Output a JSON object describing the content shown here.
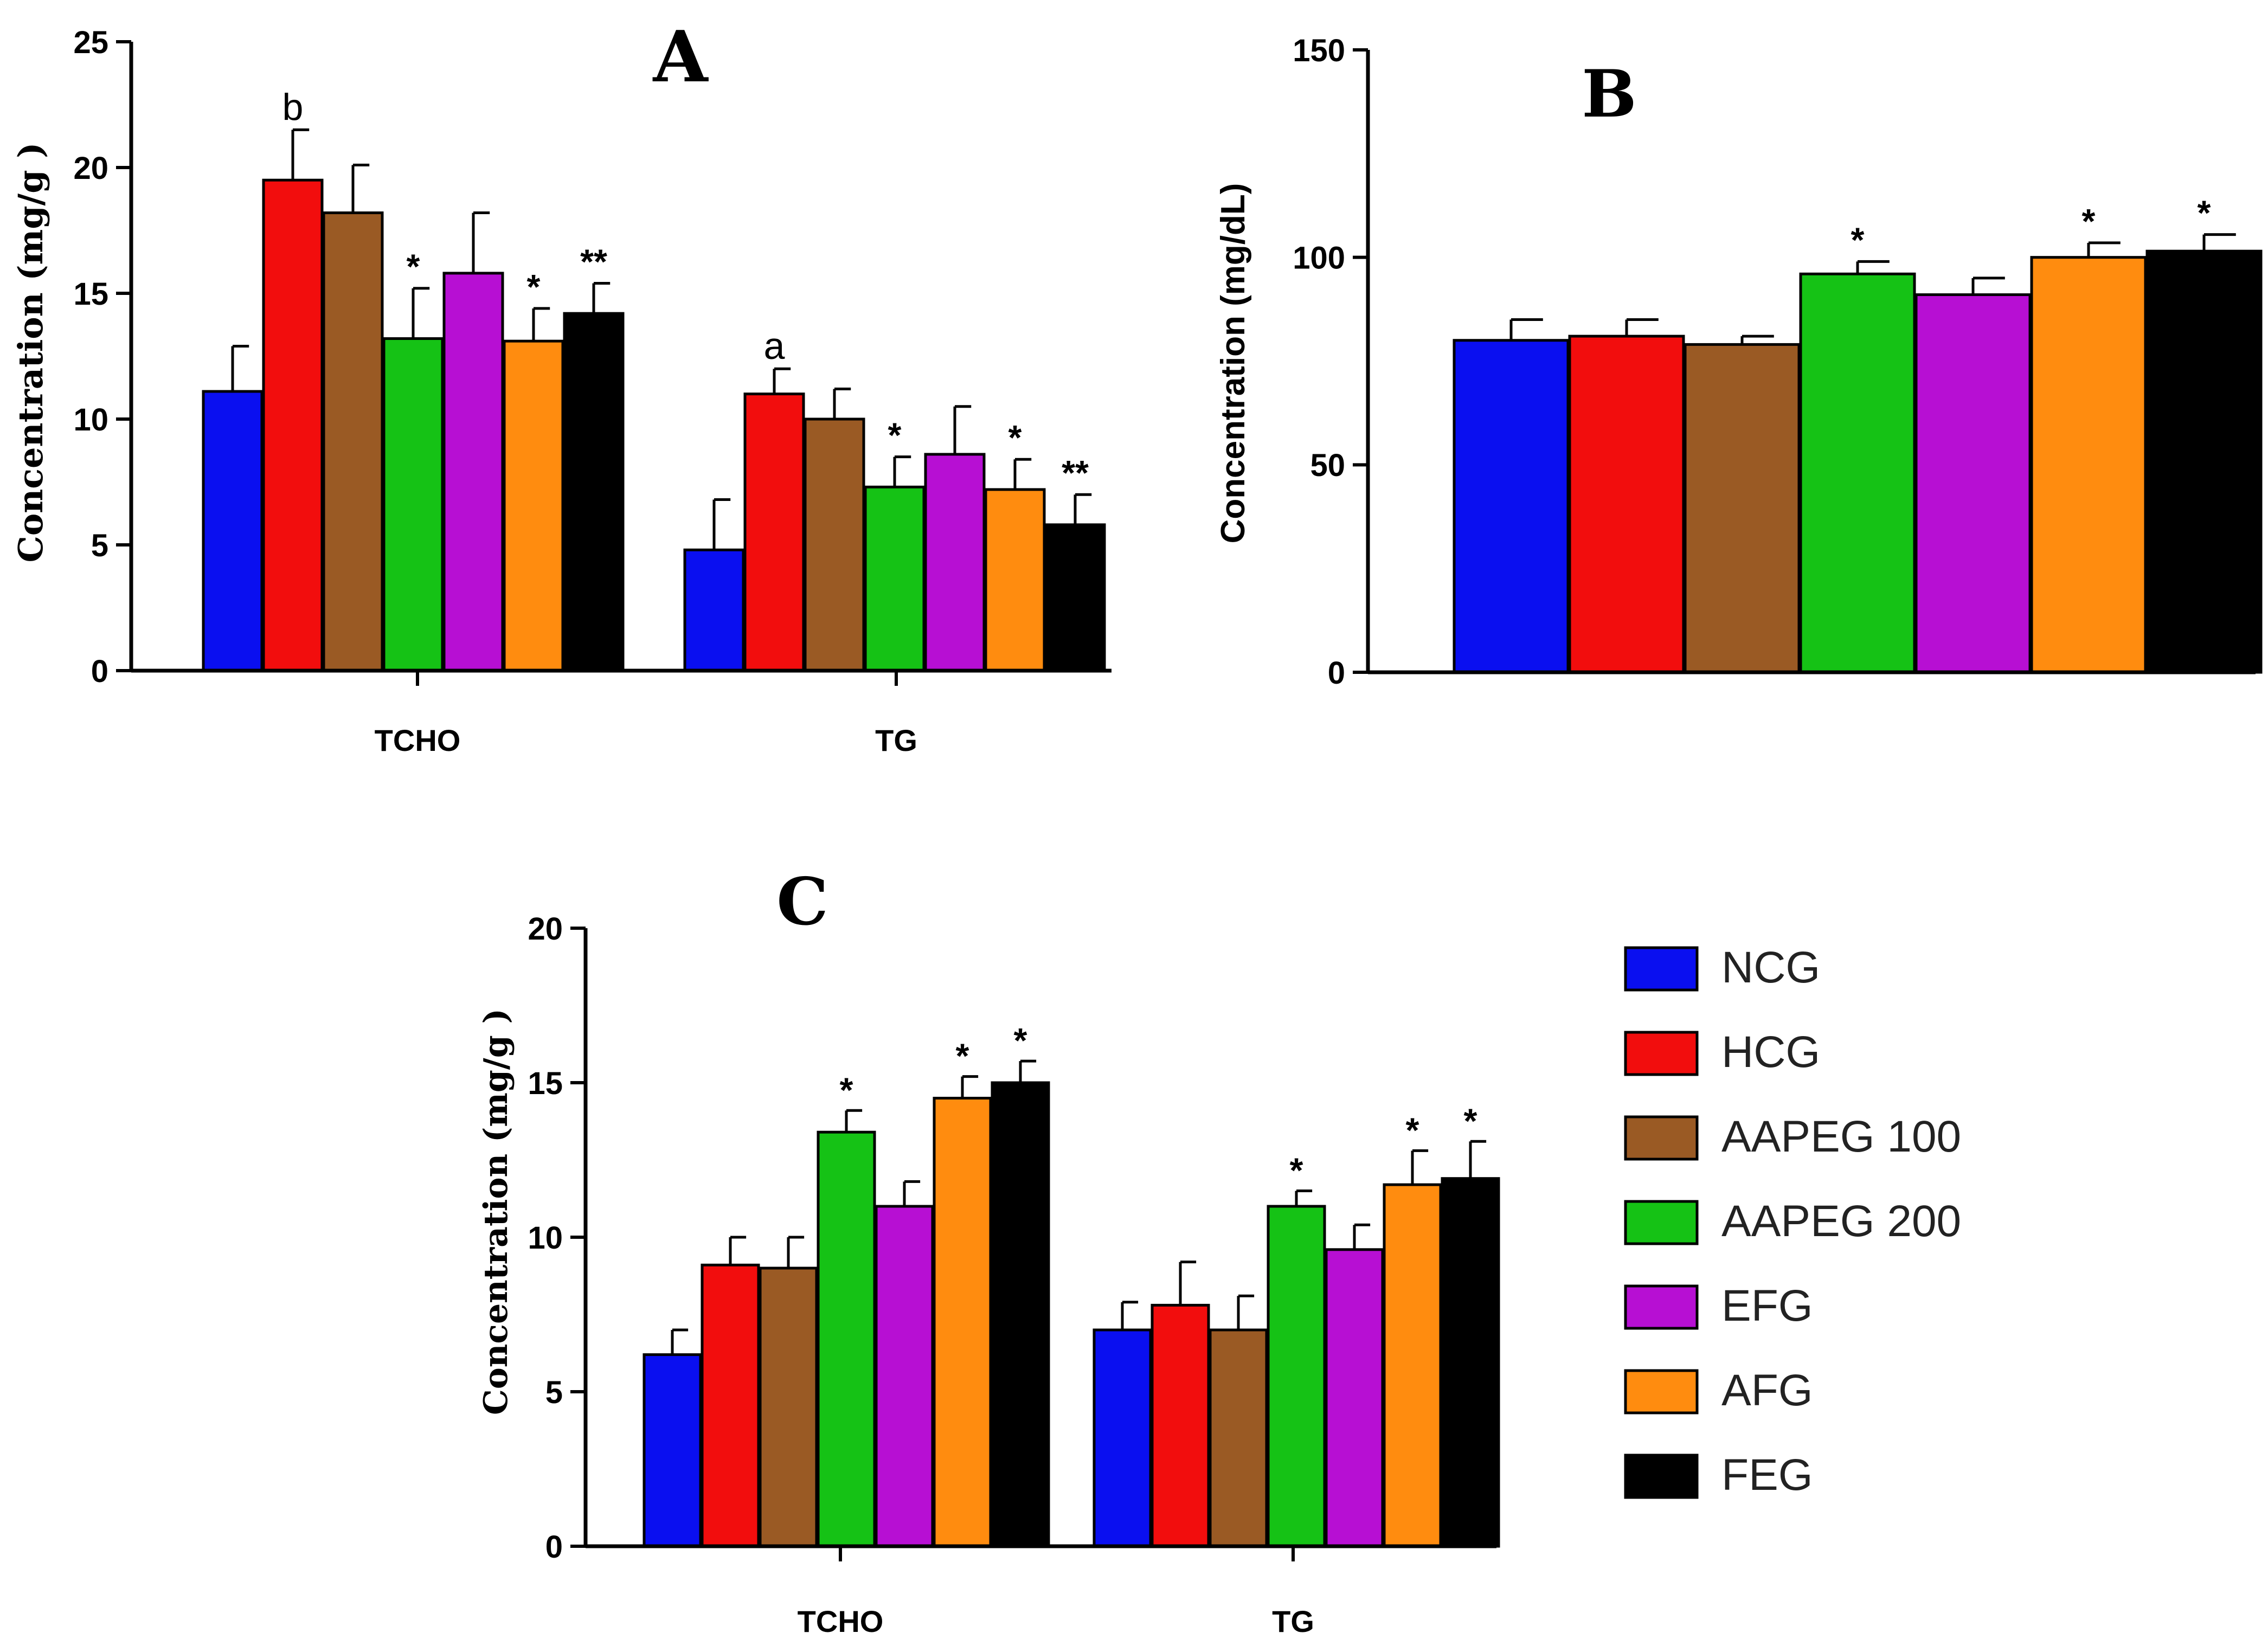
{
  "groups": [
    {
      "name": "NCG",
      "color": "#0a0ff0"
    },
    {
      "name": "HCG",
      "color": "#f20d0d"
    },
    {
      "name": "AAPEG 100",
      "color": "#9a5a24"
    },
    {
      "name": "AAPEG 200",
      "color": "#15c215"
    },
    {
      "name": "EFG",
      "color": "#b70fd3"
    },
    {
      "name": "AFG",
      "color": "#ff8c0f"
    },
    {
      "name": "FEG",
      "color": "#000000"
    }
  ],
  "chart_data": [
    {
      "id": "A",
      "type": "bar",
      "title": "A",
      "ylabel": "Concentration (mg/g )",
      "xlabel": "",
      "ylim": [
        0,
        25
      ],
      "yticks": [
        "0",
        "5",
        "10",
        "15",
        "20",
        "25"
      ],
      "categories": [
        "TCHO",
        "TG"
      ],
      "series": [
        {
          "name": "NCG",
          "values": [
            11.1,
            4.8
          ],
          "errors": [
            1.8,
            2.0
          ],
          "marks": [
            "",
            ""
          ]
        },
        {
          "name": "HCG",
          "values": [
            19.5,
            11.0
          ],
          "errors": [
            2.0,
            1.0
          ],
          "marks": [
            "b",
            "a"
          ]
        },
        {
          "name": "AAPEG 100",
          "values": [
            18.2,
            10.0
          ],
          "errors": [
            1.9,
            1.2
          ],
          "marks": [
            "",
            ""
          ]
        },
        {
          "name": "AAPEG 200",
          "values": [
            13.2,
            7.3
          ],
          "errors": [
            2.0,
            1.2
          ],
          "marks": [
            "*",
            "*"
          ]
        },
        {
          "name": "EFG",
          "values": [
            15.8,
            8.6
          ],
          "errors": [
            2.4,
            1.9
          ],
          "marks": [
            "",
            ""
          ]
        },
        {
          "name": "AFG",
          "values": [
            13.1,
            7.2
          ],
          "errors": [
            1.3,
            1.2
          ],
          "marks": [
            "*",
            "*"
          ]
        },
        {
          "name": "FEG",
          "values": [
            14.2,
            5.8
          ],
          "errors": [
            1.2,
            1.2
          ],
          "marks": [
            "**",
            "**"
          ]
        }
      ]
    },
    {
      "id": "B",
      "type": "bar",
      "title": "B",
      "ylabel": "Concentration (mg/dL)",
      "xlabel": "",
      "ylim": [
        0,
        150
      ],
      "yticks": [
        "0",
        "50",
        "100",
        "150"
      ],
      "categories": [
        ""
      ],
      "series": [
        {
          "name": "NCG",
          "values": [
            80
          ],
          "errors": [
            5
          ],
          "marks": [
            ""
          ]
        },
        {
          "name": "HCG",
          "values": [
            81
          ],
          "errors": [
            4
          ],
          "marks": [
            ""
          ]
        },
        {
          "name": "AAPEG 100",
          "values": [
            79
          ],
          "errors": [
            2
          ],
          "marks": [
            ""
          ]
        },
        {
          "name": "AAPEG 200",
          "values": [
            96
          ],
          "errors": [
            3
          ],
          "marks": [
            "*"
          ]
        },
        {
          "name": "EFG",
          "values": [
            91
          ],
          "errors": [
            4
          ],
          "marks": [
            ""
          ]
        },
        {
          "name": "AFG",
          "values": [
            100
          ],
          "errors": [
            3.5
          ],
          "marks": [
            "*"
          ]
        },
        {
          "name": "FEG",
          "values": [
            101.5
          ],
          "errors": [
            4
          ],
          "marks": [
            "*"
          ]
        }
      ]
    },
    {
      "id": "C",
      "type": "bar",
      "title": "C",
      "ylabel": "Concentration (mg/g )",
      "xlabel": "",
      "ylim": [
        0,
        20
      ],
      "yticks": [
        "0",
        "5",
        "10",
        "15",
        "20"
      ],
      "categories": [
        "TCHO",
        "TG"
      ],
      "series": [
        {
          "name": "NCG",
          "values": [
            6.2,
            7.0
          ],
          "errors": [
            0.8,
            0.9
          ],
          "marks": [
            "",
            ""
          ]
        },
        {
          "name": "HCG",
          "values": [
            9.1,
            7.8
          ],
          "errors": [
            0.9,
            1.4
          ],
          "marks": [
            "",
            ""
          ]
        },
        {
          "name": "AAPEG 100",
          "values": [
            9.0,
            7.0
          ],
          "errors": [
            1.0,
            1.1
          ],
          "marks": [
            "",
            ""
          ]
        },
        {
          "name": "AAPEG 200",
          "values": [
            13.4,
            11.0
          ],
          "errors": [
            0.7,
            0.5
          ],
          "marks": [
            "*",
            "*"
          ]
        },
        {
          "name": "EFG",
          "values": [
            11.0,
            9.6
          ],
          "errors": [
            0.8,
            0.8
          ],
          "marks": [
            "",
            ""
          ]
        },
        {
          "name": "AFG",
          "values": [
            14.5,
            11.7
          ],
          "errors": [
            0.7,
            1.1
          ],
          "marks": [
            "*",
            "*"
          ]
        },
        {
          "name": "FEG",
          "values": [
            15.0,
            11.9
          ],
          "errors": [
            0.7,
            1.2
          ],
          "marks": [
            "*",
            "*"
          ]
        }
      ]
    }
  ]
}
